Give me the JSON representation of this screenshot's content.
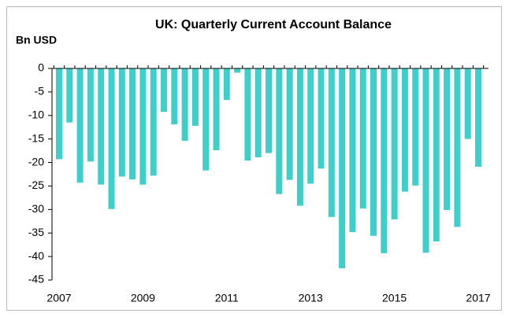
{
  "chart_data": {
    "type": "bar",
    "title": "UK: Quarterly Current Account Balance",
    "y_label": "Bn USD",
    "categories": [
      "2007",
      null,
      null,
      null,
      null,
      null,
      null,
      null,
      "2009",
      null,
      null,
      null,
      null,
      null,
      null,
      null,
      "2011",
      null,
      null,
      null,
      null,
      null,
      null,
      null,
      "2013",
      null,
      null,
      null,
      null,
      null,
      null,
      null,
      "2015",
      null,
      null,
      null,
      null,
      null,
      null,
      null,
      "2017"
    ],
    "values": [
      -19.3,
      -11.5,
      -24.3,
      -19.8,
      -24.7,
      -29.9,
      -23,
      -23.6,
      -24.7,
      -22.8,
      -9.2,
      -11.9,
      -15.4,
      -12.2,
      -21.7,
      -17.4,
      -6.7,
      -0.9,
      -19.6,
      -18.9,
      -18,
      -26.7,
      -23.7,
      -29.2,
      -24.5,
      -21.3,
      -31.6,
      -42.5,
      -34.8,
      -29.8,
      -35.6,
      -39.3,
      -32.1,
      -26.2,
      -24.9,
      -39.2,
      -36.8,
      -30.1,
      -33.7,
      -15,
      -20.9
    ],
    "color": "#3fcfca",
    "ylim": [
      -45,
      0
    ],
    "yticks": [
      0,
      -5,
      -10,
      -15,
      -20,
      -25,
      -30,
      -35,
      -40,
      -45
    ],
    "grid": false
  }
}
